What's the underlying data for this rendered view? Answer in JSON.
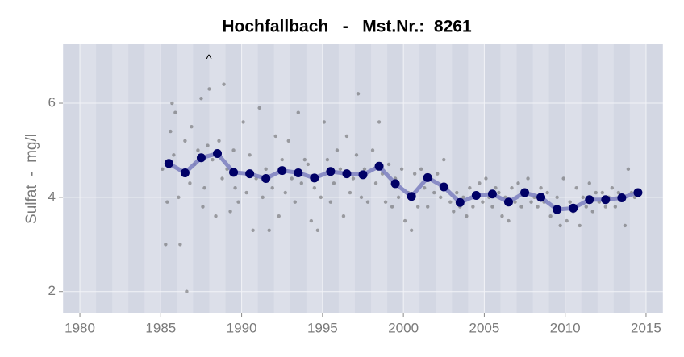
{
  "chart_data": {
    "type": "scatter",
    "title": "Hochfallbach   -   Mst.Nr.:  8261",
    "ylabel": "Sulfat  -  mg/l",
    "annotation": "^",
    "xlim": [
      1978.95,
      2016.05
    ],
    "ylim": [
      1.55,
      7.25
    ],
    "xticks": [
      1980,
      1985,
      1990,
      1995,
      2000,
      2005,
      2010,
      2015
    ],
    "yticks": [
      2,
      4,
      6
    ],
    "grid": true,
    "series": [
      {
        "type": "scatter",
        "color": "#555555",
        "x": [
          1985.1,
          1985.3,
          1985.4,
          1985.6,
          1985.7,
          1985.8,
          1985.9,
          1986.1,
          1986.2,
          1986.4,
          1986.5,
          1986.6,
          1986.8,
          1986.9,
          1987.1,
          1987.3,
          1987.5,
          1987.6,
          1987.7,
          1987.9,
          1988.0,
          1988.2,
          1988.4,
          1988.6,
          1988.8,
          1988.9,
          1989.1,
          1989.3,
          1989.5,
          1989.6,
          1989.8,
          1990.1,
          1990.3,
          1990.5,
          1990.7,
          1990.9,
          1991.1,
          1991.3,
          1991.5,
          1991.7,
          1991.9,
          1992.1,
          1992.3,
          1992.5,
          1992.7,
          1992.9,
          1993.1,
          1993.3,
          1993.5,
          1993.7,
          1993.9,
          1994.1,
          1994.3,
          1994.5,
          1994.7,
          1994.9,
          1995.1,
          1995.3,
          1995.5,
          1995.7,
          1995.9,
          1996.1,
          1996.3,
          1996.5,
          1996.7,
          1996.9,
          1997.1,
          1997.2,
          1997.4,
          1997.6,
          1997.8,
          1998.1,
          1998.3,
          1998.5,
          1998.7,
          1998.9,
          1999.1,
          1999.3,
          1999.5,
          1999.7,
          1999.9,
          2000.1,
          2000.3,
          2000.5,
          2000.7,
          2000.9,
          2001.1,
          2001.3,
          2001.5,
          2001.7,
          2001.9,
          2002.1,
          2002.3,
          2002.5,
          2002.7,
          2002.9,
          2003.1,
          2003.3,
          2003.5,
          2003.7,
          2003.9,
          2004.1,
          2004.3,
          2004.5,
          2004.7,
          2004.9,
          2005.1,
          2005.3,
          2005.5,
          2005.7,
          2005.9,
          2006.1,
          2006.3,
          2006.5,
          2006.7,
          2006.9,
          2007.1,
          2007.3,
          2007.5,
          2007.7,
          2007.9,
          2008.1,
          2008.3,
          2008.5,
          2008.7,
          2008.9,
          2009.1,
          2009.3,
          2009.5,
          2009.7,
          2009.9,
          2010.1,
          2010.3,
          2010.5,
          2010.7,
          2010.9,
          2011.1,
          2011.3,
          2011.5,
          2011.7,
          2011.9,
          2012.1,
          2012.3,
          2012.5,
          2012.7,
          2012.9,
          2013.1,
          2013.3,
          2013.5,
          2013.7,
          2013.9,
          2014.1,
          2014.3
        ],
        "values": [
          4.6,
          3.0,
          3.9,
          5.4,
          6.0,
          4.9,
          5.8,
          4.0,
          3.0,
          4.5,
          5.2,
          2.0,
          4.3,
          5.5,
          4.7,
          5.0,
          6.1,
          3.8,
          4.2,
          5.1,
          6.3,
          4.8,
          3.6,
          5.2,
          4.4,
          6.4,
          4.6,
          3.7,
          5.0,
          4.2,
          3.9,
          5.6,
          4.1,
          4.9,
          3.3,
          4.4,
          5.9,
          4.0,
          4.6,
          3.3,
          4.2,
          5.3,
          3.6,
          4.8,
          4.1,
          5.2,
          4.4,
          3.9,
          5.8,
          4.3,
          4.8,
          4.7,
          3.5,
          4.2,
          3.3,
          4.0,
          5.6,
          4.8,
          3.9,
          4.3,
          5.0,
          4.6,
          3.6,
          5.3,
          4.1,
          4.4,
          4.9,
          6.2,
          4.0,
          4.6,
          3.9,
          5.0,
          4.3,
          5.6,
          4.5,
          3.9,
          4.7,
          3.8,
          4.4,
          4.0,
          4.6,
          3.5,
          4.1,
          3.3,
          4.5,
          3.8,
          4.6,
          4.2,
          3.8,
          4.4,
          4.1,
          4.5,
          4.0,
          4.8,
          4.2,
          3.9,
          3.7,
          4.1,
          3.8,
          4.0,
          3.6,
          4.2,
          3.8,
          4.0,
          4.3,
          3.9,
          4.4,
          4.0,
          3.8,
          4.2,
          4.1,
          3.6,
          4.0,
          3.5,
          4.2,
          3.9,
          4.3,
          3.8,
          4.1,
          4.4,
          3.9,
          4.0,
          3.8,
          4.2,
          3.9,
          4.1,
          3.6,
          3.8,
          4.0,
          3.4,
          4.4,
          3.5,
          3.9,
          3.7,
          4.2,
          3.4,
          4.0,
          3.8,
          4.3,
          3.7,
          4.1,
          3.9,
          4.1,
          3.8,
          4.0,
          4.2,
          3.8,
          4.1,
          4.0,
          3.4,
          4.6,
          4.1,
          4.0
        ]
      },
      {
        "type": "line",
        "color": "#000066",
        "line_color": "#7b7fc0",
        "x": [
          1985.5,
          1986.5,
          1987.5,
          1988.5,
          1989.5,
          1990.5,
          1991.5,
          1992.5,
          1993.5,
          1994.5,
          1995.5,
          1996.5,
          1997.5,
          1998.5,
          1999.5,
          2000.5,
          2001.5,
          2002.5,
          2003.5,
          2004.5,
          2005.5,
          2006.5,
          2007.5,
          2008.5,
          2009.5,
          2010.5,
          2011.5,
          2012.5,
          2013.5,
          2014.5
        ],
        "values": [
          4.72,
          4.52,
          4.84,
          4.93,
          4.53,
          4.5,
          4.4,
          4.57,
          4.52,
          4.41,
          4.55,
          4.5,
          4.48,
          4.66,
          4.29,
          4.02,
          4.42,
          4.22,
          3.89,
          4.04,
          4.07,
          3.9,
          4.1,
          4.0,
          3.74,
          3.77,
          3.95,
          3.95,
          3.99,
          4.1
        ]
      }
    ]
  }
}
